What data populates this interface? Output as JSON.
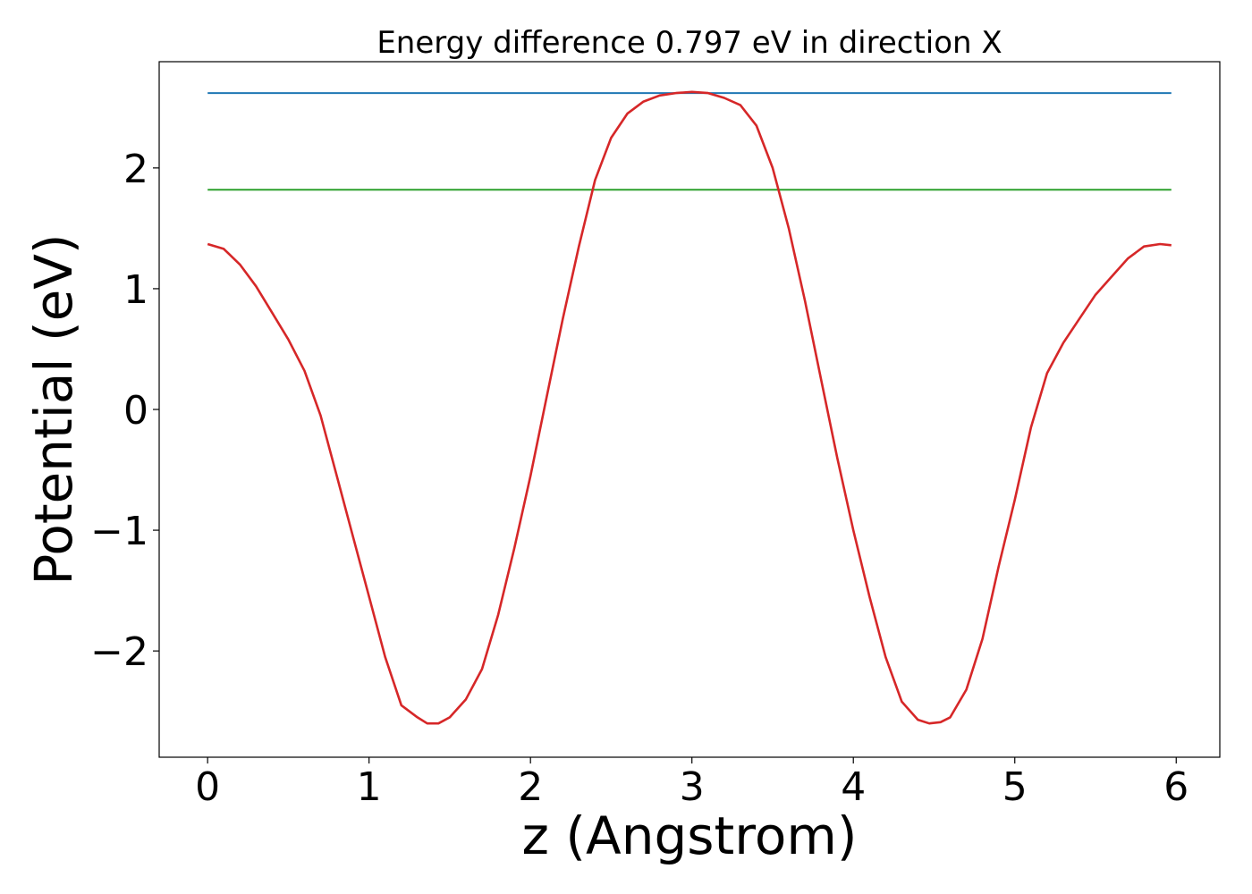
{
  "chart_data": {
    "type": "line",
    "title": "Energy difference 0.797 eV in direction X",
    "xlabel": "z (Angstrom)",
    "ylabel": "Potential (eV)",
    "xlim": [
      -0.3,
      6.27
    ],
    "ylim": [
      -2.88,
      2.88
    ],
    "x_ticks": [
      0,
      1,
      2,
      3,
      4,
      5,
      6
    ],
    "x_tick_labels": [
      "0",
      "1",
      "2",
      "3",
      "4",
      "5",
      "6"
    ],
    "y_ticks": [
      -2,
      -1,
      0,
      1,
      2
    ],
    "y_tick_labels": [
      "−2",
      "−1",
      "0",
      "1",
      "2"
    ],
    "grid": false,
    "legend": "none",
    "series": [
      {
        "color": "#1f77b4",
        "x": [
          0,
          5.97
        ],
        "y": [
          2.62,
          2.62
        ]
      },
      {
        "color": "#2ca02c",
        "x": [
          0,
          5.97
        ],
        "y": [
          1.82,
          1.82
        ]
      },
      {
        "color": "#d62728",
        "x": [
          0.0,
          0.1,
          0.2,
          0.3,
          0.4,
          0.5,
          0.6,
          0.7,
          0.8,
          0.9,
          1.0,
          1.1,
          1.2,
          1.3,
          1.36,
          1.43,
          1.5,
          1.6,
          1.7,
          1.8,
          1.9,
          2.0,
          2.1,
          2.2,
          2.3,
          2.4,
          2.5,
          2.6,
          2.7,
          2.8,
          2.9,
          3.0,
          3.1,
          3.2,
          3.3,
          3.4,
          3.5,
          3.6,
          3.7,
          3.8,
          3.9,
          4.0,
          4.1,
          4.2,
          4.3,
          4.4,
          4.47,
          4.54,
          4.6,
          4.7,
          4.8,
          4.9,
          5.0,
          5.1,
          5.2,
          5.3,
          5.4,
          5.5,
          5.6,
          5.7,
          5.8,
          5.9,
          5.97
        ],
        "y": [
          1.37,
          1.33,
          1.2,
          1.02,
          0.8,
          0.58,
          0.32,
          -0.05,
          -0.55,
          -1.05,
          -1.55,
          -2.05,
          -2.45,
          -2.55,
          -2.6,
          -2.6,
          -2.55,
          -2.4,
          -2.15,
          -1.7,
          -1.15,
          -0.55,
          0.1,
          0.75,
          1.35,
          1.9,
          2.25,
          2.45,
          2.55,
          2.6,
          2.62,
          2.63,
          2.62,
          2.58,
          2.52,
          2.35,
          2.0,
          1.5,
          0.9,
          0.25,
          -0.4,
          -1.0,
          -1.55,
          -2.05,
          -2.42,
          -2.57,
          -2.6,
          -2.59,
          -2.55,
          -2.32,
          -1.9,
          -1.3,
          -0.75,
          -0.15,
          0.3,
          0.55,
          0.75,
          0.95,
          1.1,
          1.25,
          1.35,
          1.37,
          1.36
        ]
      }
    ]
  }
}
